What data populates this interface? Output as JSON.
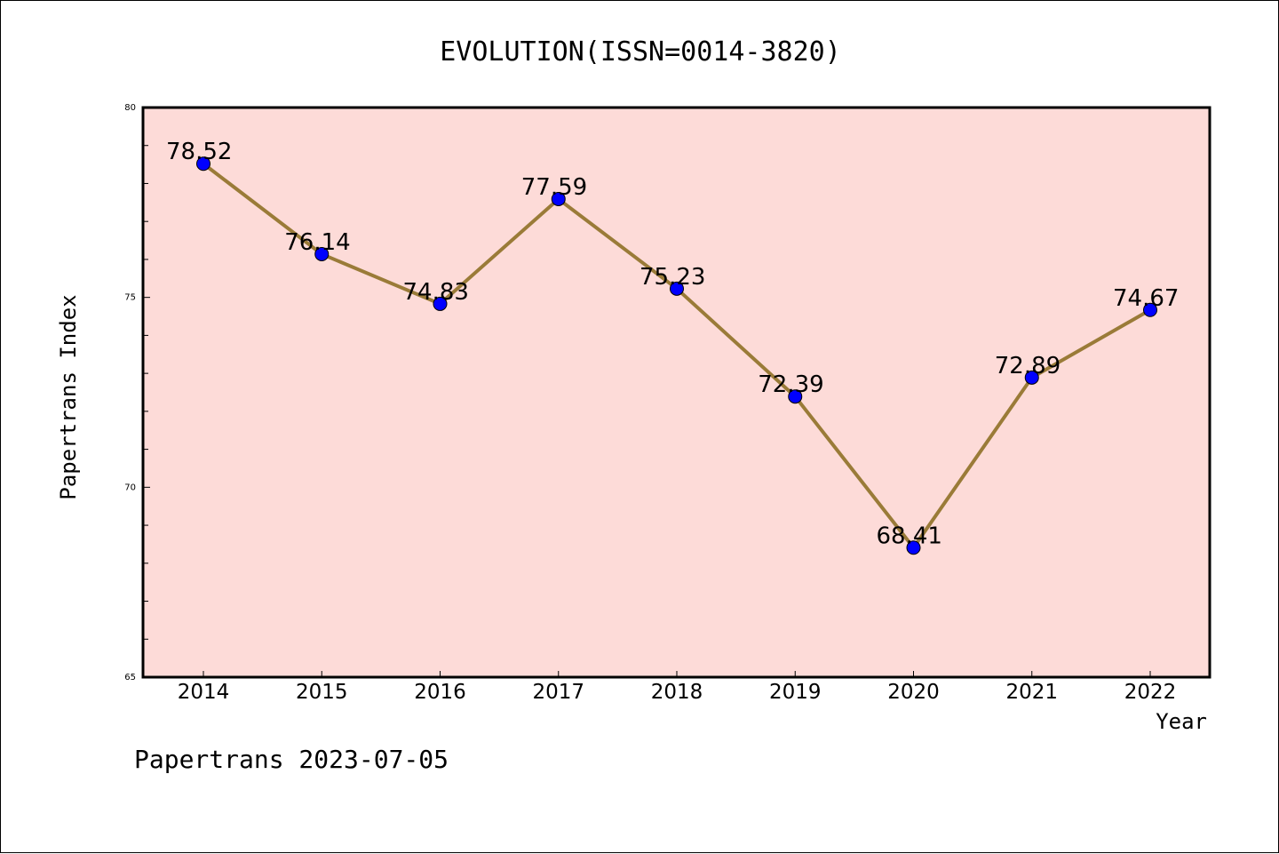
{
  "chart_data": {
    "type": "line",
    "title": "EVOLUTION(ISSN=0014-3820)",
    "xlabel": "Year",
    "ylabel": "Papertrans Index",
    "categories": [
      "2014",
      "2015",
      "2016",
      "2017",
      "2018",
      "2019",
      "2020",
      "2021",
      "2022"
    ],
    "values": [
      78.52,
      76.14,
      74.83,
      77.59,
      75.23,
      72.39,
      68.41,
      72.89,
      74.67
    ],
    "data_labels": [
      "78.52",
      "76.14",
      "74.83",
      "77.59",
      "75.23",
      "72.39",
      "68.41",
      "72.89",
      "74.67"
    ],
    "ylim": [
      65,
      80
    ],
    "yticks": [
      "65",
      "70",
      "75",
      "80"
    ],
    "grid": false,
    "legend": "none",
    "colors": {
      "plot_background": "#fddbd8",
      "line": "#9a7b38",
      "marker": "#0000ff",
      "axis": "#000000"
    }
  },
  "footer": {
    "text": "Papertrans 2023-07-05"
  }
}
